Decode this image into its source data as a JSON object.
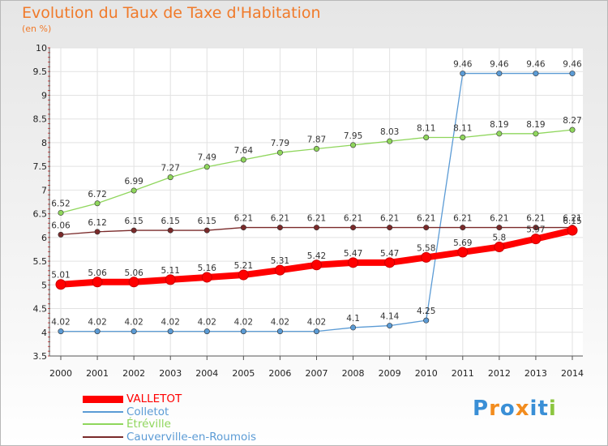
{
  "chart_data": {
    "type": "line",
    "title": "Evolution du Taux de Taxe d'Habitation",
    "subtitle": "(en %)",
    "x": [
      "2000",
      "2001",
      "2002",
      "2003",
      "2004",
      "2005",
      "2006",
      "2007",
      "2008",
      "2009",
      "2010",
      "2011",
      "2012",
      "2013",
      "2014"
    ],
    "ylim": [
      3.5,
      10
    ],
    "yticks": [
      "3.5",
      "4",
      "4.5",
      "5",
      "5.5",
      "6",
      "6.5",
      "7",
      "7.5",
      "8",
      "8.5",
      "9",
      "9.5",
      "10"
    ],
    "grid": true,
    "legend_position": "bottom-left",
    "series": [
      {
        "name": "VALLETOT",
        "color": "#ff0000",
        "values": [
          5.01,
          5.06,
          5.06,
          5.11,
          5.16,
          5.21,
          5.31,
          5.42,
          5.47,
          5.47,
          5.58,
          5.69,
          5.8,
          5.97,
          6.15
        ],
        "labels": [
          "5.01",
          "5.06",
          "5.06",
          "5.11",
          "5.16",
          "5.21",
          "5.31",
          "5.42",
          "5.47",
          "5.47",
          "5.58",
          "5.69",
          "5.8",
          "5.97",
          "6.15"
        ]
      },
      {
        "name": "Colletot",
        "color": "#5b9bd5",
        "values": [
          4.02,
          4.02,
          4.02,
          4.02,
          4.02,
          4.02,
          4.02,
          4.02,
          4.1,
          4.14,
          4.25,
          9.46,
          9.46,
          9.46,
          9.46
        ],
        "labels": [
          "4.02",
          "4.02",
          "4.02",
          "4.02",
          "4.02",
          "4.02",
          "4.02",
          "4.02",
          "4.1",
          "4.14",
          "4.25",
          "9.46",
          "9.46",
          "9.46",
          "9.46"
        ]
      },
      {
        "name": "Étréville",
        "color": "#8fd65c",
        "values": [
          6.52,
          6.72,
          6.99,
          7.27,
          7.49,
          7.64,
          7.79,
          7.87,
          7.95,
          8.03,
          8.11,
          8.11,
          8.19,
          8.19,
          8.27
        ],
        "labels": [
          "6.52",
          "6.72",
          "6.99",
          "7.27",
          "7.49",
          "7.64",
          "7.79",
          "7.87",
          "7.95",
          "8.03",
          "8.11",
          "8.11",
          "8.19",
          "8.19",
          "8.27"
        ]
      },
      {
        "name": "Cauverville-en-Roumois",
        "color": "#7a2a2a",
        "values": [
          6.06,
          6.12,
          6.15,
          6.15,
          6.15,
          6.21,
          6.21,
          6.21,
          6.21,
          6.21,
          6.21,
          6.21,
          6.21,
          6.21,
          6.21
        ],
        "labels": [
          "6.06",
          "6.12",
          "6.15",
          "6.15",
          "6.15",
          "6.21",
          "6.21",
          "6.21",
          "6.21",
          "6.21",
          "6.21",
          "6.21",
          "6.21",
          "6.21",
          "6.21"
        ]
      }
    ]
  },
  "logo": {
    "text": "Proxiti"
  }
}
